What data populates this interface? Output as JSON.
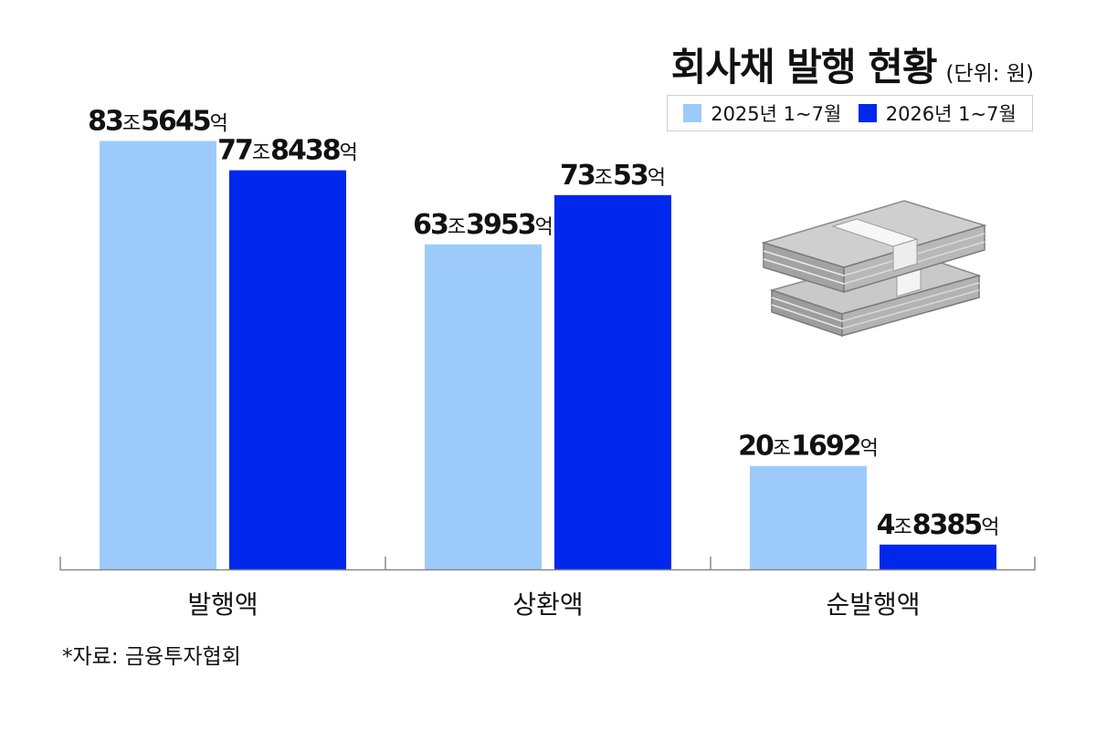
{
  "title": "회사채 발행 현황",
  "unit_note": "(단위: 원)",
  "source": "*자료: 금융투자협회",
  "legend": [
    {
      "label": "2025년 1~7월",
      "color": "#9ccbfb"
    },
    {
      "label": "2026년 1~7월",
      "color": "#0027ec"
    }
  ],
  "decoration": {
    "icon": "money-stack-icon"
  },
  "chart_data": {
    "type": "bar",
    "categories": [
      "발행액",
      "상환액",
      "순발행액"
    ],
    "series": [
      {
        "name": "2025년 1~7월",
        "color": "#9ccbfb",
        "values": [
          83.5645,
          63.3953,
          20.1692
        ],
        "labels": [
          [
            {
              "t": "83",
              "b": true
            },
            {
              "t": "조",
              "b": false
            },
            {
              "t": "5645",
              "b": true
            },
            {
              "t": "억",
              "b": false
            }
          ],
          [
            {
              "t": "63",
              "b": true
            },
            {
              "t": "조",
              "b": false
            },
            {
              "t": "3953",
              "b": true
            },
            {
              "t": "억",
              "b": false
            }
          ],
          [
            {
              "t": "20",
              "b": true
            },
            {
              "t": "조",
              "b": false
            },
            {
              "t": "1692",
              "b": true
            },
            {
              "t": "억",
              "b": false
            }
          ]
        ]
      },
      {
        "name": "2026년 1~7월",
        "color": "#0027ec",
        "values": [
          77.8438,
          73.0053,
          4.8385
        ],
        "labels": [
          [
            {
              "t": "77",
              "b": true
            },
            {
              "t": "조",
              "b": false
            },
            {
              "t": "8438",
              "b": true
            },
            {
              "t": "억",
              "b": false
            }
          ],
          [
            {
              "t": "73",
              "b": true
            },
            {
              "t": "조",
              "b": false
            },
            {
              "t": "53",
              "b": true
            },
            {
              "t": "억",
              "b": false
            }
          ],
          [
            {
              "t": "4",
              "b": true
            },
            {
              "t": "조",
              "b": false
            },
            {
              "t": "8385",
              "b": true
            },
            {
              "t": "억",
              "b": false
            }
          ]
        ]
      }
    ],
    "ylim": [
      0,
      90
    ],
    "grid": false,
    "legend_position": "top-right"
  }
}
